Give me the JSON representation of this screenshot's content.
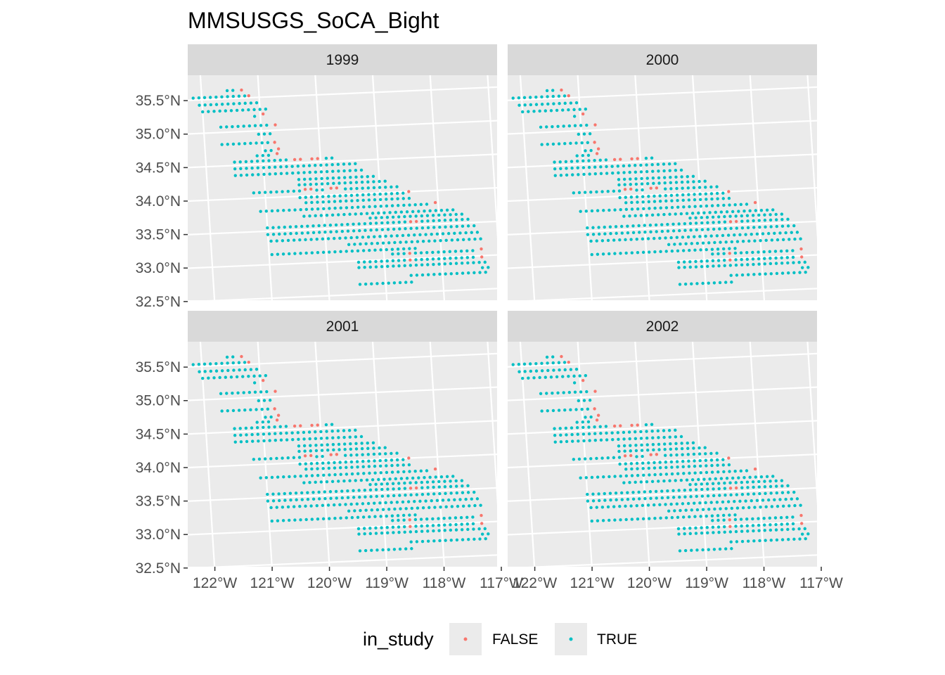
{
  "chart_data": {
    "type": "scatter",
    "title": "MMSUSGS_SoCA_Bight",
    "facets": [
      "1999",
      "2000",
      "2001",
      "2002"
    ],
    "x_ticks": [
      "122°W",
      "121°W",
      "120°W",
      "119°W",
      "118°W",
      "117°W"
    ],
    "y_ticks": [
      "32.5°N",
      "33.0°N",
      "33.5°N",
      "34.0°N",
      "34.5°N",
      "35.0°N",
      "35.5°N"
    ],
    "xlim": [
      -122.35,
      -116.95
    ],
    "ylim": [
      32.42,
      35.78
    ],
    "grid": true,
    "legend": {
      "title": "in_study",
      "position": "bottom",
      "entries": [
        {
          "label": "FALSE",
          "color": "#F8766D"
        },
        {
          "label": "TRUE",
          "color": "#00BFC4"
        }
      ]
    },
    "colors": {
      "false": "#F8766D",
      "true": "#00BFC4",
      "panel_bg": "#EBEBEB",
      "strip_bg": "#D9D9D9",
      "grid": "#FFFFFF"
    },
    "survey_rows": [
      {
        "lat": 35.62,
        "lon_start": -121.55,
        "lon_end": -121.3
      },
      {
        "lat": 35.53,
        "lon_start": -122.15,
        "lon_end": -121.15
      },
      {
        "lat": 35.42,
        "lon_start": -122.05,
        "lon_end": -121.0
      },
      {
        "lat": 35.32,
        "lon_start": -122.0,
        "lon_end": -120.9
      },
      {
        "lat": 35.22,
        "lon_start": -121.1,
        "lon_end": -120.85
      },
      {
        "lat": 35.08,
        "lon_start": -121.7,
        "lon_end": -120.75
      },
      {
        "lat": 34.95,
        "lon_start": -121.05,
        "lon_end": -120.8
      },
      {
        "lat": 34.82,
        "lon_start": -121.7,
        "lon_end": -120.75
      },
      {
        "lat": 34.7,
        "lon_start": -120.95,
        "lon_end": -120.7
      },
      {
        "lat": 34.63,
        "lon_start": -121.1,
        "lon_end": -120.7
      },
      {
        "lat": 34.55,
        "lon_start": -121.5,
        "lon_end": -119.75
      },
      {
        "lat": 34.45,
        "lon_start": -121.5,
        "lon_end": -119.4
      },
      {
        "lat": 34.35,
        "lon_start": -121.5,
        "lon_end": -119.3
      },
      {
        "lat": 34.25,
        "lon_start": -120.4,
        "lon_end": -119.1
      },
      {
        "lat": 34.17,
        "lon_start": -120.4,
        "lon_end": -118.9
      },
      {
        "lat": 34.08,
        "lon_start": -121.2,
        "lon_end": -118.7
      },
      {
        "lat": 33.98,
        "lon_start": -120.4,
        "lon_end": -118.6
      },
      {
        "lat": 33.9,
        "lon_start": -120.3,
        "lon_end": -118.5
      },
      {
        "lat": 33.8,
        "lon_start": -121.1,
        "lon_end": -118.1
      },
      {
        "lat": 33.7,
        "lon_start": -120.35,
        "lon_end": -117.7
      },
      {
        "lat": 33.63,
        "lon_start": -119.2,
        "lon_end": -117.6
      },
      {
        "lat": 33.55,
        "lon_start": -121.0,
        "lon_end": -117.5
      },
      {
        "lat": 33.45,
        "lon_start": -121.0,
        "lon_end": -117.4
      },
      {
        "lat": 33.35,
        "lon_start": -120.95,
        "lon_end": -117.3
      },
      {
        "lat": 33.25,
        "lon_start": -119.6,
        "lon_end": -117.3
      },
      {
        "lat": 33.15,
        "lon_start": -120.95,
        "lon_end": -118.4
      },
      {
        "lat": 33.08,
        "lon_start": -118.85,
        "lon_end": -117.25
      },
      {
        "lat": 32.98,
        "lon_start": -119.45,
        "lon_end": -117.2
      },
      {
        "lat": 32.9,
        "lon_start": -119.45,
        "lon_end": -117.2
      },
      {
        "lat": 32.82,
        "lon_start": -117.3,
        "lon_end": -117.15
      },
      {
        "lat": 32.75,
        "lon_start": -118.55,
        "lon_end": -117.2
      },
      {
        "lat": 32.65,
        "lon_start": -119.45,
        "lon_end": -118.55
      }
    ],
    "not_in_study_points": [
      {
        "lon": -121.3,
        "lat": 35.62
      },
      {
        "lon": -121.18,
        "lat": 35.53
      },
      {
        "lon": -120.95,
        "lat": 35.25
      },
      {
        "lon": -120.75,
        "lat": 35.08
      },
      {
        "lon": -120.78,
        "lat": 34.82
      },
      {
        "lon": -120.72,
        "lat": 34.72
      },
      {
        "lon": -120.75,
        "lat": 34.65
      },
      {
        "lon": -120.45,
        "lat": 34.55
      },
      {
        "lon": -120.35,
        "lat": 34.55
      },
      {
        "lon": -120.15,
        "lat": 34.55
      },
      {
        "lon": -120.05,
        "lat": 34.55
      },
      {
        "lon": -120.3,
        "lat": 34.1
      },
      {
        "lon": -120.2,
        "lat": 34.1
      },
      {
        "lon": -119.85,
        "lat": 34.1
      },
      {
        "lon": -119.75,
        "lat": 34.1
      },
      {
        "lon": -118.5,
        "lat": 34.0
      },
      {
        "lon": -118.05,
        "lat": 33.82
      },
      {
        "lon": -118.5,
        "lat": 33.55
      },
      {
        "lon": -118.4,
        "lat": 33.55
      },
      {
        "lon": -117.3,
        "lat": 33.1
      },
      {
        "lon": -118.55,
        "lat": 33.08
      },
      {
        "lon": -118.55,
        "lat": 32.98
      },
      {
        "lon": -117.3,
        "lat": 32.98
      }
    ]
  }
}
